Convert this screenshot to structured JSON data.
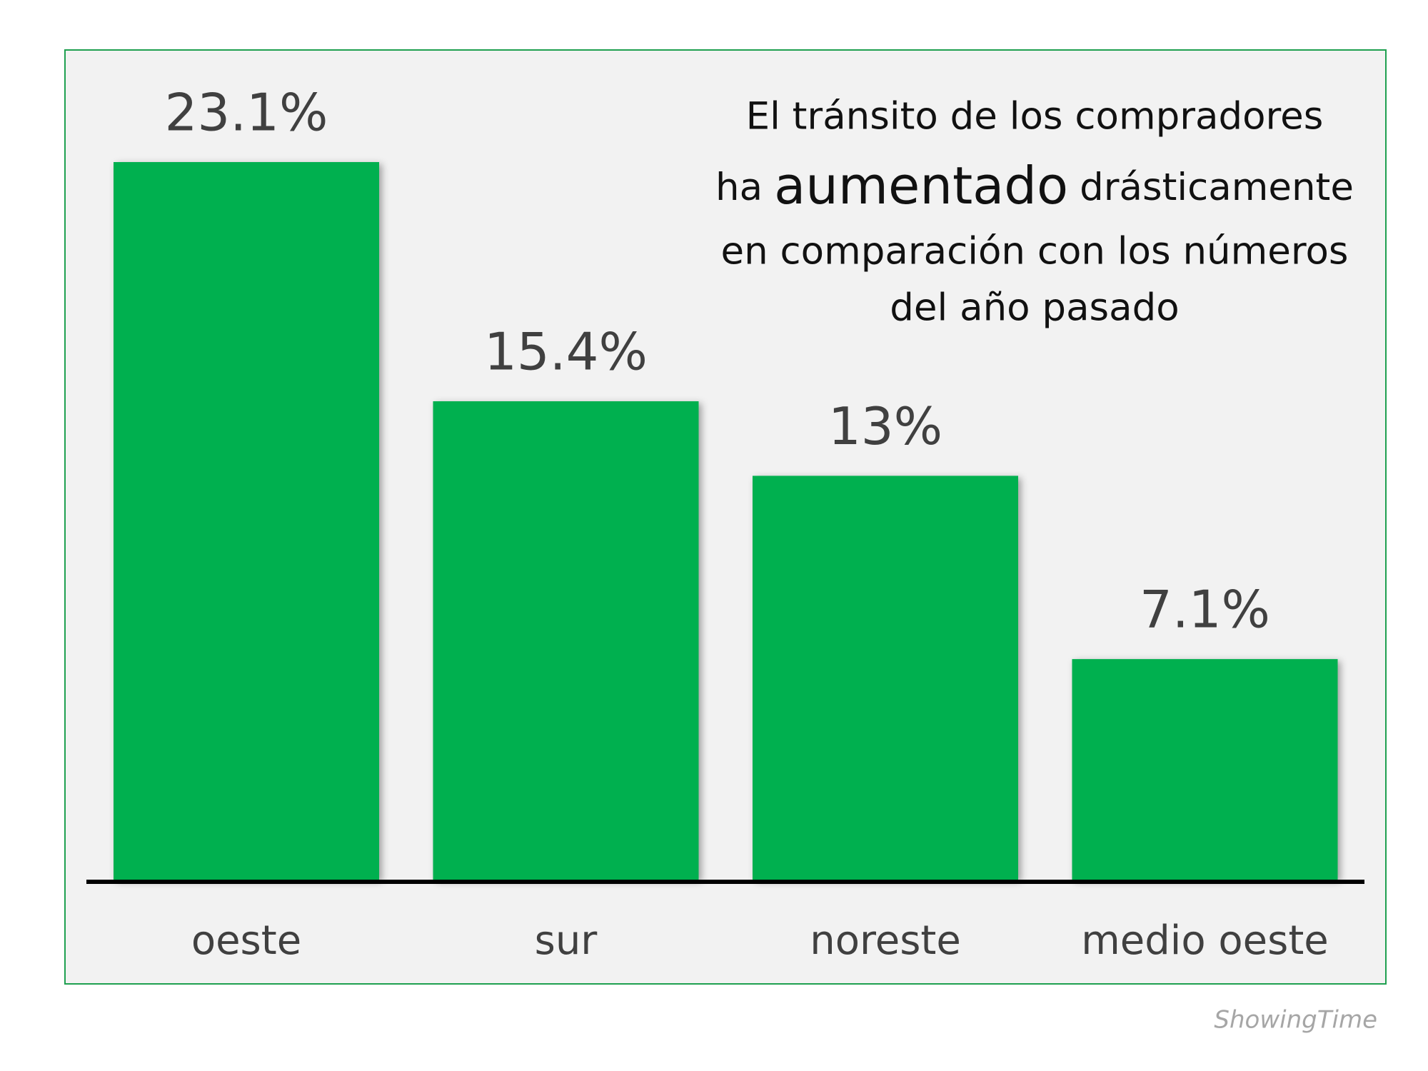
{
  "chart_data": {
    "type": "bar",
    "title_lines": [
      "El tránsito de los compradores",
      [
        "ha",
        "aumentado",
        "drásticamente"
      ],
      "en comparación con los números",
      "del año pasado"
    ],
    "categories": [
      "oeste",
      "sur",
      "noreste",
      "medio oeste"
    ],
    "values": [
      23.1,
      15.4,
      13,
      7.1
    ],
    "value_labels": [
      "23.1%",
      "15.4%",
      "13%",
      "7.1%"
    ],
    "color": "#00b050",
    "source": "ShowingTime"
  }
}
